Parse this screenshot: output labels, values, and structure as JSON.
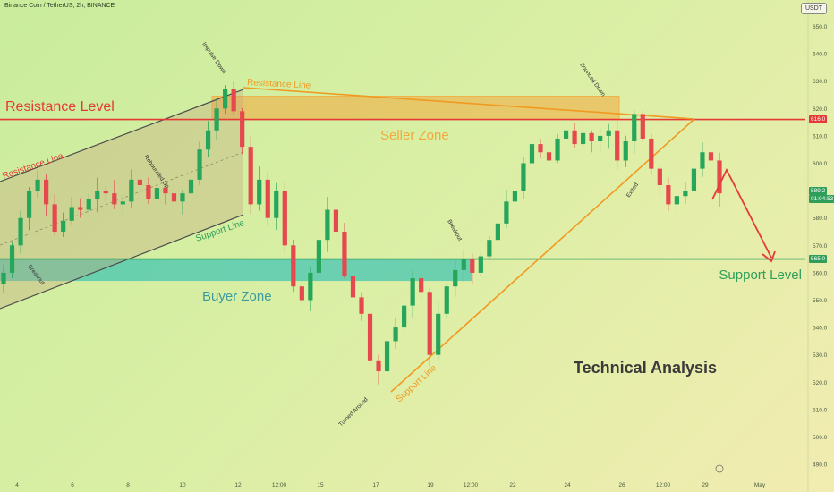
{
  "header": {
    "symbol_title": "Binance Coin / TetherUS, 2h, BINANCE",
    "currency_button": "USDT"
  },
  "price_tags": {
    "resistance": "616.0",
    "current_price": "589.2",
    "countdown": "01:04:53",
    "support": "565.0"
  },
  "colors": {
    "resistance": "#e53935",
    "support": "#2e9e5a",
    "seller_zone": "#f2a83a",
    "buyer_zone": "#3cc3b4",
    "channel": "#4a4a4a",
    "trend_orange": "#f09a22",
    "bull_candle": "#26a65b",
    "bear_candle": "#e5484d",
    "current_tag": "#2e9e5a"
  },
  "chart_data": {
    "type": "candlestick",
    "symbol": "Binance Coin / TetherUS",
    "interval": "2h",
    "exchange": "BINANCE",
    "y_axis": {
      "ticks": [
        490.0,
        500.0,
        510.0,
        520.0,
        530.0,
        540.0,
        550.0,
        560.0,
        570.0,
        580.0,
        590.0,
        600.0,
        610.0,
        620.0,
        630.0,
        640.0,
        650.0
      ],
      "range": [
        487,
        657
      ]
    },
    "x_axis": {
      "labels": [
        "4",
        "6",
        "8",
        "10",
        "12",
        "12:00",
        "15",
        "17",
        "19",
        "12:00",
        "22",
        "24",
        "26",
        "12:00",
        "29",
        "May"
      ]
    },
    "levels": {
      "resistance_level": 616.0,
      "support_level": 565.0
    },
    "last_price": 589.2,
    "series_close": [
      560,
      570,
      580,
      590,
      594,
      585,
      575,
      579,
      584,
      583,
      587,
      590,
      589,
      585,
      586,
      594,
      592,
      587,
      591,
      589,
      586,
      589,
      594,
      605,
      612,
      620,
      627,
      619,
      606,
      585,
      594,
      580,
      590,
      570,
      555,
      550,
      560,
      572,
      583,
      575,
      559,
      551,
      545,
      528,
      524,
      535,
      540,
      548,
      558,
      553,
      530,
      545,
      555,
      561,
      565,
      560,
      566,
      572,
      578,
      586,
      590,
      600,
      607,
      604,
      601,
      609,
      612,
      607,
      611,
      608,
      610,
      612,
      601,
      608,
      618,
      609,
      598,
      592,
      585,
      588,
      590,
      598,
      604,
      601,
      589
    ],
    "labels": {
      "resistance_level": "Resistance Level",
      "support_level": "Support Level",
      "seller_zone": "Seller Zone",
      "buyer_zone": "Buyer Zone",
      "technical_analysis": "Technical Analysis",
      "resistance_line_1": "Resistance Line",
      "resistance_line_2": "Resistance Line",
      "support_line_1": "Support Line",
      "support_line_2": "Support Line",
      "breakout_1": "Breakout",
      "breakout_2": "Breakout",
      "rebounded_up": "Rebounded Up",
      "impulse_down": "Impulse Down",
      "turned_around": "Turned Around",
      "bounced_down": "Bounced Down",
      "exited": "Exited"
    }
  }
}
